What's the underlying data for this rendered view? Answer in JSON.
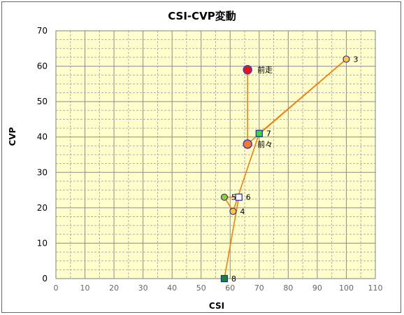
{
  "chart_data": {
    "type": "scatter",
    "title": "CSI-CVP変動",
    "xlabel": "CSI",
    "ylabel": "CVP",
    "xlim": [
      0,
      110
    ],
    "ylim": [
      0,
      70
    ],
    "x_ticks": [
      0,
      10,
      20,
      30,
      40,
      50,
      60,
      70,
      80,
      90,
      100,
      110
    ],
    "y_ticks": [
      0,
      10,
      20,
      30,
      40,
      50,
      60,
      70
    ],
    "grid": true,
    "plot_background": "#ffffcc",
    "line_color": "#ff7700",
    "path_order": [
      "前走",
      "前々",
      "3",
      "7",
      "4",
      "5",
      "6",
      "8"
    ],
    "points": [
      {
        "label": "前走",
        "x": 66,
        "y": 59,
        "marker": "circle-large",
        "fill": "#ee1111",
        "stroke": "#3344cc"
      },
      {
        "label": "前々",
        "x": 66,
        "y": 38,
        "marker": "circle-large",
        "fill": "#ff7722",
        "stroke": "#3344cc"
      },
      {
        "label": "3",
        "x": 100,
        "y": 62,
        "marker": "circle",
        "fill": "#ffcc33",
        "stroke": "#333399"
      },
      {
        "label": "4",
        "x": 61,
        "y": 19,
        "marker": "circle",
        "fill": "#ffcc33",
        "stroke": "#333399"
      },
      {
        "label": "5",
        "x": 58,
        "y": 23,
        "marker": "circle",
        "fill": "#99cc33",
        "stroke": "#333399"
      },
      {
        "label": "6",
        "x": 63,
        "y": 23,
        "marker": "square-open",
        "fill": "#ffffff",
        "stroke": "#2222cc"
      },
      {
        "label": "7",
        "x": 70,
        "y": 41,
        "marker": "square",
        "fill": "#33dd33",
        "stroke": "#2222cc"
      },
      {
        "label": "8",
        "x": 58,
        "y": 0,
        "marker": "square",
        "fill": "#118833",
        "stroke": "#2222cc"
      }
    ]
  }
}
